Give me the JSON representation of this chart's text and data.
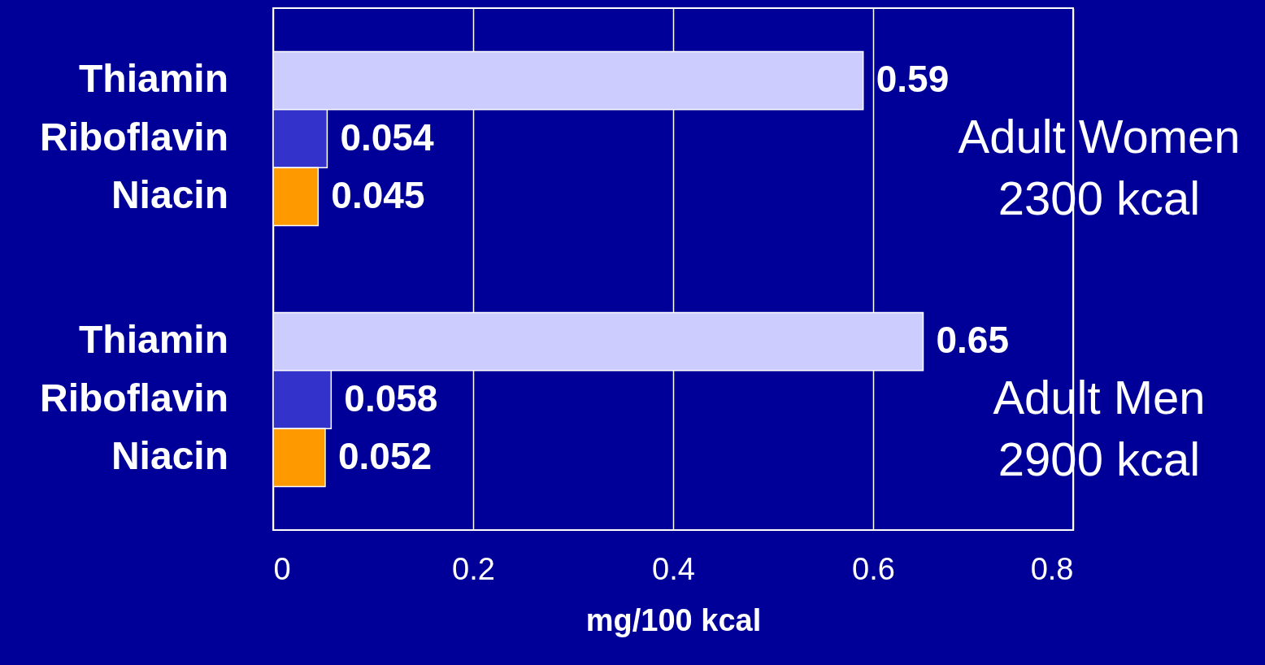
{
  "chart_data": {
    "type": "bar",
    "orientation": "horizontal",
    "xlabel": "mg/100 kcal",
    "categories": [
      "Thiamin",
      "Riboflavin",
      "Niacin",
      "Thiamin",
      "Riboflavin",
      "Niacin"
    ],
    "values": [
      0.59,
      0.054,
      0.045,
      0.65,
      0.058,
      0.052
    ],
    "colors": [
      "#ccccff",
      "#3333cc",
      "#ff9900",
      "#ccccff",
      "#3333cc",
      "#ff9900"
    ],
    "xlim": [
      0,
      0.8
    ],
    "xticks": [
      0,
      0.2,
      0.4,
      0.6,
      0.8
    ],
    "grid": "x",
    "data_labels": true,
    "annotations": [
      "Adult Women\n2300 kcal",
      "Adult Men\n2900 kcal"
    ]
  }
}
